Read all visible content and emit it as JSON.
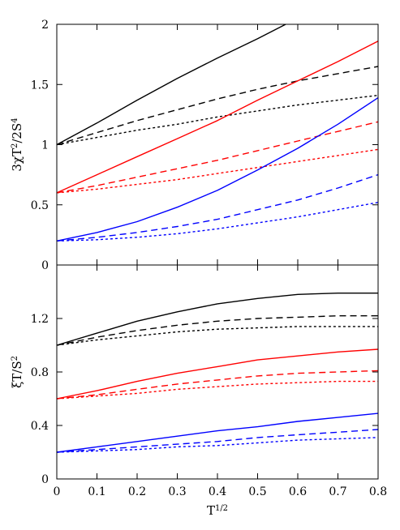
{
  "chart_data": [
    {
      "type": "line",
      "panel": "top",
      "ylabel": "3χT²/2S⁴",
      "ylabel_parts": {
        "base": "3χT",
        "exp1": "2",
        "mid": "/2S",
        "exp2": "4"
      },
      "xlim": [
        0,
        0.8
      ],
      "ylim": [
        0,
        2
      ],
      "yticks": [
        0,
        0.5,
        1,
        1.5,
        2
      ],
      "ytick_labels": [
        "0",
        "0.5",
        "1",
        "1.5",
        "2"
      ],
      "colors": {
        "black": "#000000",
        "red": "#ff0000",
        "blue": "#0000ff"
      },
      "series": [
        {
          "color": "black",
          "style": "solid",
          "x": [
            0,
            0.1,
            0.2,
            0.3,
            0.4,
            0.5,
            0.57
          ],
          "y": [
            1.0,
            1.18,
            1.37,
            1.55,
            1.72,
            1.88,
            2.0
          ]
        },
        {
          "color": "black",
          "style": "dashed",
          "x": [
            0,
            0.1,
            0.2,
            0.3,
            0.4,
            0.5,
            0.6,
            0.7,
            0.8
          ],
          "y": [
            1.0,
            1.1,
            1.2,
            1.29,
            1.38,
            1.46,
            1.53,
            1.59,
            1.65
          ]
        },
        {
          "color": "black",
          "style": "dotted",
          "x": [
            0,
            0.1,
            0.2,
            0.3,
            0.4,
            0.5,
            0.6,
            0.7,
            0.8
          ],
          "y": [
            1.0,
            1.06,
            1.12,
            1.17,
            1.23,
            1.28,
            1.33,
            1.37,
            1.41
          ]
        },
        {
          "color": "red",
          "style": "solid",
          "x": [
            0,
            0.1,
            0.2,
            0.3,
            0.4,
            0.5,
            0.6,
            0.7,
            0.8
          ],
          "y": [
            0.6,
            0.75,
            0.9,
            1.05,
            1.2,
            1.37,
            1.53,
            1.69,
            1.86
          ]
        },
        {
          "color": "red",
          "style": "dashed",
          "x": [
            0,
            0.1,
            0.2,
            0.3,
            0.4,
            0.5,
            0.6,
            0.7,
            0.8
          ],
          "y": [
            0.6,
            0.66,
            0.73,
            0.8,
            0.87,
            0.95,
            1.03,
            1.11,
            1.19
          ]
        },
        {
          "color": "red",
          "style": "dotted",
          "x": [
            0,
            0.1,
            0.2,
            0.3,
            0.4,
            0.5,
            0.6,
            0.7,
            0.8
          ],
          "y": [
            0.6,
            0.63,
            0.67,
            0.71,
            0.76,
            0.81,
            0.86,
            0.91,
            0.96
          ]
        },
        {
          "color": "blue",
          "style": "solid",
          "x": [
            0,
            0.1,
            0.2,
            0.3,
            0.4,
            0.5,
            0.6,
            0.7,
            0.8
          ],
          "y": [
            0.2,
            0.27,
            0.36,
            0.48,
            0.62,
            0.79,
            0.97,
            1.17,
            1.39
          ]
        },
        {
          "color": "blue",
          "style": "dashed",
          "x": [
            0,
            0.1,
            0.2,
            0.3,
            0.4,
            0.5,
            0.6,
            0.7,
            0.8
          ],
          "y": [
            0.2,
            0.23,
            0.27,
            0.32,
            0.38,
            0.46,
            0.54,
            0.64,
            0.75
          ]
        },
        {
          "color": "blue",
          "style": "dotted",
          "x": [
            0,
            0.1,
            0.2,
            0.3,
            0.4,
            0.5,
            0.6,
            0.7,
            0.8
          ],
          "y": [
            0.2,
            0.21,
            0.23,
            0.26,
            0.3,
            0.35,
            0.4,
            0.46,
            0.52
          ]
        }
      ]
    },
    {
      "type": "line",
      "panel": "bottom",
      "xlabel": "T^1/2",
      "xlabel_parts": {
        "base": "T",
        "exp": "1/2"
      },
      "ylabel": "ξT/S²",
      "ylabel_parts": {
        "base": "ξT/S",
        "exp": "2"
      },
      "xlim": [
        0,
        0.8
      ],
      "ylim": [
        0,
        1.6
      ],
      "xticks": [
        0,
        0.1,
        0.2,
        0.3,
        0.4,
        0.5,
        0.6,
        0.7,
        0.8
      ],
      "xtick_labels": [
        "0",
        "0.1",
        "0.2",
        "0.3",
        "0.4",
        "0.5",
        "0.6",
        "0.7",
        "0.8"
      ],
      "yticks": [
        0,
        0.4,
        0.8,
        1.2
      ],
      "ytick_labels": [
        "0",
        "0.4",
        "0.8",
        "1.2"
      ],
      "colors": {
        "black": "#000000",
        "red": "#ff0000",
        "blue": "#0000ff"
      },
      "series": [
        {
          "color": "black",
          "style": "solid",
          "x": [
            0,
            0.1,
            0.2,
            0.3,
            0.4,
            0.5,
            0.6,
            0.7,
            0.8
          ],
          "y": [
            1.0,
            1.09,
            1.18,
            1.25,
            1.31,
            1.35,
            1.38,
            1.39,
            1.39
          ]
        },
        {
          "color": "black",
          "style": "dashed",
          "x": [
            0,
            0.1,
            0.2,
            0.3,
            0.4,
            0.5,
            0.6,
            0.7,
            0.8
          ],
          "y": [
            1.0,
            1.06,
            1.11,
            1.15,
            1.18,
            1.2,
            1.21,
            1.22,
            1.22
          ]
        },
        {
          "color": "black",
          "style": "dotted",
          "x": [
            0,
            0.1,
            0.2,
            0.3,
            0.4,
            0.5,
            0.6,
            0.7,
            0.8
          ],
          "y": [
            1.0,
            1.04,
            1.07,
            1.1,
            1.12,
            1.13,
            1.14,
            1.14,
            1.14
          ]
        },
        {
          "color": "red",
          "style": "solid",
          "x": [
            0,
            0.1,
            0.2,
            0.3,
            0.4,
            0.5,
            0.6,
            0.7,
            0.8
          ],
          "y": [
            0.6,
            0.66,
            0.73,
            0.79,
            0.84,
            0.89,
            0.92,
            0.95,
            0.97
          ]
        },
        {
          "color": "red",
          "style": "dashed",
          "x": [
            0,
            0.1,
            0.2,
            0.3,
            0.4,
            0.5,
            0.6,
            0.7,
            0.8
          ],
          "y": [
            0.6,
            0.63,
            0.67,
            0.71,
            0.74,
            0.77,
            0.79,
            0.8,
            0.81
          ]
        },
        {
          "color": "red",
          "style": "dotted",
          "x": [
            0,
            0.1,
            0.2,
            0.3,
            0.4,
            0.5,
            0.6,
            0.7,
            0.8
          ],
          "y": [
            0.6,
            0.62,
            0.64,
            0.67,
            0.69,
            0.71,
            0.72,
            0.73,
            0.73
          ]
        },
        {
          "color": "blue",
          "style": "solid",
          "x": [
            0,
            0.1,
            0.2,
            0.3,
            0.4,
            0.5,
            0.6,
            0.7,
            0.8
          ],
          "y": [
            0.2,
            0.24,
            0.28,
            0.32,
            0.36,
            0.39,
            0.43,
            0.46,
            0.49
          ]
        },
        {
          "color": "blue",
          "style": "dashed",
          "x": [
            0,
            0.1,
            0.2,
            0.3,
            0.4,
            0.5,
            0.6,
            0.7,
            0.8
          ],
          "y": [
            0.2,
            0.22,
            0.24,
            0.26,
            0.28,
            0.31,
            0.33,
            0.35,
            0.37
          ]
        },
        {
          "color": "blue",
          "style": "dotted",
          "x": [
            0,
            0.1,
            0.2,
            0.3,
            0.4,
            0.5,
            0.6,
            0.7,
            0.8
          ],
          "y": [
            0.2,
            0.21,
            0.22,
            0.24,
            0.25,
            0.27,
            0.29,
            0.3,
            0.31
          ]
        }
      ]
    }
  ]
}
